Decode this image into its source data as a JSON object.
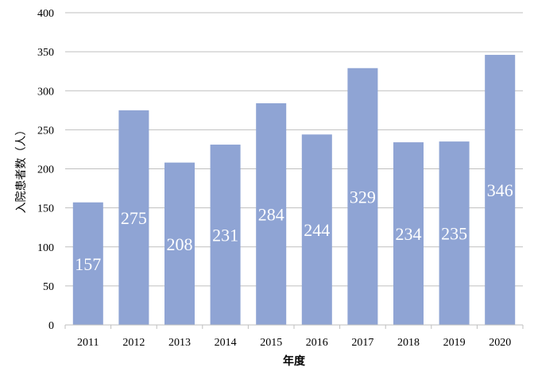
{
  "chart_data": {
    "type": "bar",
    "title": "",
    "xlabel": "年度",
    "ylabel": "入院患者数（人）",
    "categories": [
      "2011",
      "2012",
      "2013",
      "2014",
      "2015",
      "2016",
      "2017",
      "2018",
      "2019",
      "2020"
    ],
    "values": [
      157,
      275,
      208,
      231,
      284,
      244,
      329,
      234,
      235,
      346
    ],
    "ylim": [
      0,
      400
    ],
    "yticks": [
      0,
      50,
      100,
      150,
      200,
      250,
      300,
      350,
      400
    ],
    "grid": true,
    "data_labels": true,
    "legend": "none",
    "colors": {
      "bar": "#8fa4d4",
      "gridline": "#bfbfbf",
      "axis": "#bfbfbf",
      "label": "#ffffff",
      "text": "#000000"
    }
  }
}
